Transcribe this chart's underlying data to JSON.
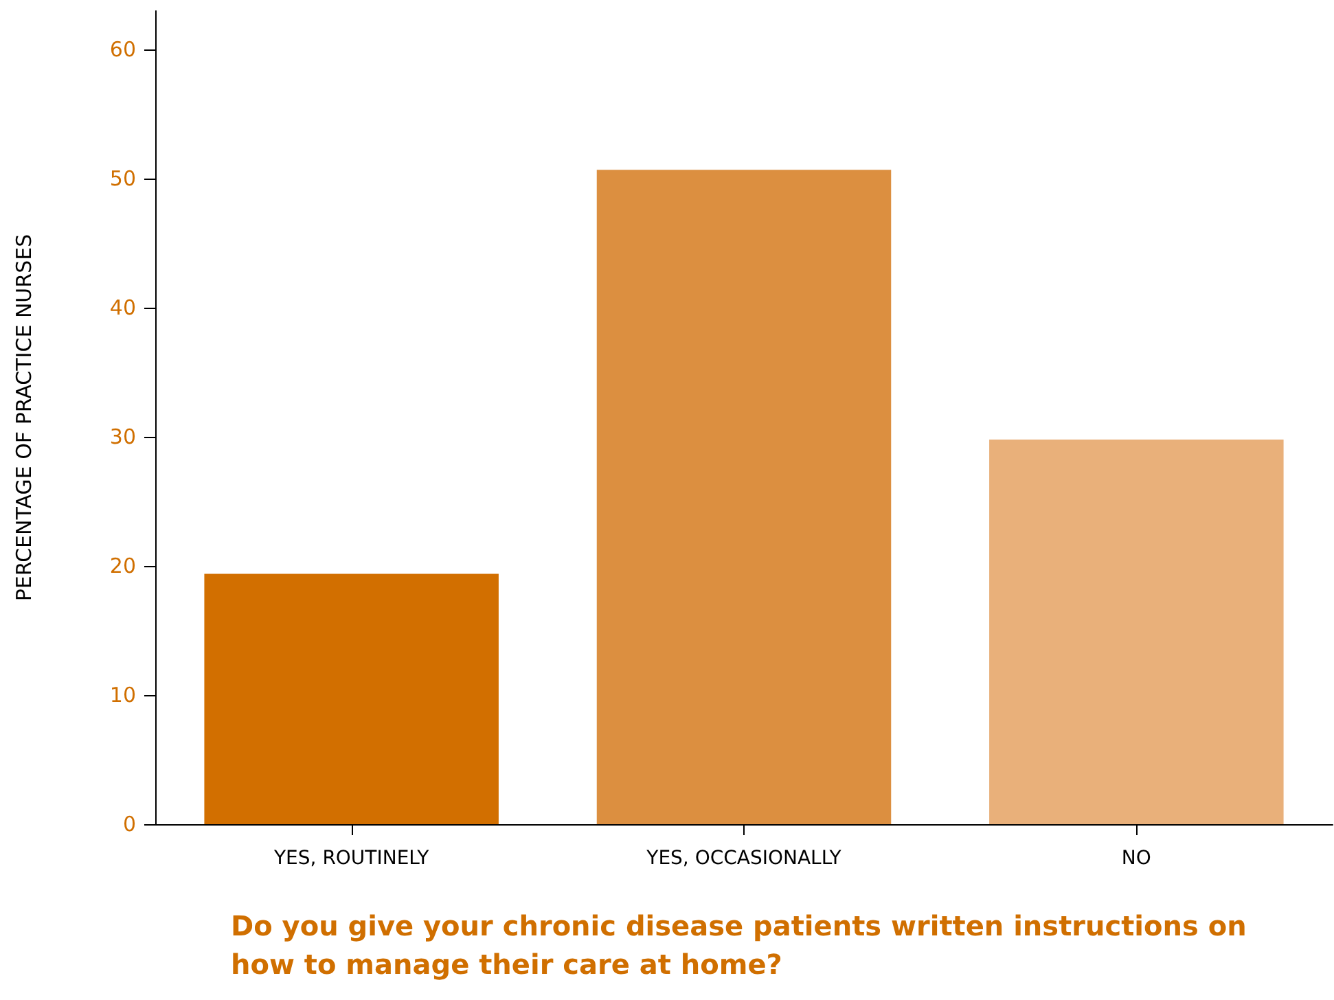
{
  "chart_data": {
    "type": "bar",
    "xlabel": "Do you give your chronic disease patients written instructions on how to manage their care at home?",
    "ylabel": "PERCENTAGE OF PRACTICE NURSES",
    "categories": [
      "YES, ROUTINELY",
      "YES, OCCASIONALLY",
      "NO"
    ],
    "values": [
      19.4,
      50.7,
      29.8
    ],
    "colors": [
      "#d26f00",
      "#dc8f40",
      "#e9b07a"
    ],
    "ylim": [
      0,
      63
    ],
    "yticks": [
      0,
      10,
      20,
      30,
      40,
      50,
      60
    ],
    "grid": false
  }
}
